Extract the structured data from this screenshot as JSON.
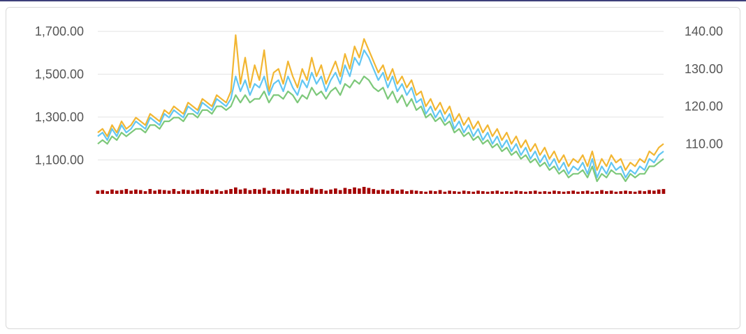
{
  "chart_data": {
    "type": "line",
    "title": "",
    "y_left": {
      "ticks": [
        "1,100.00",
        "1,300.00",
        "1,500.00",
        "1,700.00"
      ],
      "range": [
        1000,
        1700
      ]
    },
    "y_right": {
      "ticks": [
        "110.00",
        "120.00",
        "130.00",
        "140.00"
      ],
      "range": [
        100,
        140
      ]
    },
    "x_count": 120,
    "series": [
      {
        "name": "",
        "axis": "right",
        "color": "#f2b632",
        "values": [
          113,
          114,
          112,
          115,
          113,
          116,
          114,
          115,
          117,
          116,
          115,
          118,
          117,
          116,
          119,
          118,
          120,
          119,
          118,
          121,
          120,
          119,
          122,
          121,
          120,
          123,
          122,
          121,
          124,
          139,
          126,
          133,
          125,
          131,
          127,
          135,
          124,
          129,
          130,
          126,
          132,
          128,
          125,
          130,
          127,
          133,
          128,
          131,
          126,
          129,
          132,
          128,
          134,
          130,
          136,
          133,
          138,
          135,
          132,
          129,
          131,
          127,
          130,
          126,
          128,
          125,
          127,
          123,
          124,
          120,
          122,
          119,
          121,
          118,
          120,
          116,
          118,
          115,
          117,
          114,
          116,
          113,
          115,
          112,
          114,
          111,
          113,
          110,
          112,
          109,
          111,
          108,
          110,
          107,
          109,
          106,
          108,
          105,
          107,
          104,
          106,
          105,
          107,
          104,
          108,
          103,
          106,
          104,
          107,
          105,
          106,
          103,
          105,
          104,
          106,
          105,
          108,
          107,
          109,
          110
        ]
      },
      {
        "name": "",
        "axis": "right",
        "color": "#62c6f2",
        "values": [
          112,
          113,
          111,
          114,
          112,
          115,
          113,
          114,
          116,
          115,
          114,
          117,
          116,
          115,
          118,
          117,
          119,
          118,
          117,
          120,
          119,
          118,
          121,
          120,
          119,
          122,
          121,
          120,
          122,
          128,
          124,
          127,
          123,
          126,
          125,
          128,
          123,
          126,
          127,
          124,
          128,
          125,
          123,
          127,
          125,
          129,
          126,
          128,
          124,
          127,
          129,
          126,
          131,
          128,
          133,
          131,
          135,
          133,
          130,
          127,
          129,
          125,
          128,
          124,
          126,
          123,
          125,
          121,
          122,
          118,
          120,
          117,
          119,
          116,
          118,
          114,
          116,
          113,
          115,
          112,
          114,
          111,
          113,
          110,
          112,
          109,
          111,
          108,
          110,
          107,
          109,
          106,
          108,
          105,
          107,
          104,
          106,
          103,
          105,
          102,
          104,
          103,
          105,
          102,
          106,
          101,
          104,
          102,
          105,
          103,
          104,
          101,
          103,
          102,
          104,
          103,
          106,
          105,
          107,
          108
        ]
      },
      {
        "name": "",
        "axis": "right",
        "color": "#7dc87a",
        "values": [
          110,
          111,
          110,
          112,
          111,
          113,
          112,
          113,
          114,
          114,
          113,
          115,
          115,
          114,
          116,
          116,
          117,
          117,
          116,
          118,
          118,
          117,
          119,
          119,
          118,
          120,
          120,
          119,
          120,
          123,
          121,
          123,
          121,
          122,
          122,
          124,
          121,
          123,
          123,
          122,
          124,
          123,
          121,
          123,
          122,
          125,
          123,
          124,
          122,
          124,
          125,
          123,
          126,
          125,
          127,
          126,
          128,
          127,
          125,
          124,
          125,
          122,
          124,
          121,
          123,
          120,
          122,
          119,
          120,
          117,
          118,
          116,
          117,
          115,
          116,
          113,
          114,
          112,
          113,
          111,
          112,
          110,
          111,
          109,
          110,
          108,
          109,
          107,
          108,
          106,
          107,
          105,
          106,
          104,
          105,
          103,
          104,
          102,
          103,
          101,
          102,
          102,
          103,
          101,
          104,
          100,
          102,
          101,
          103,
          102,
          102,
          100,
          102,
          101,
          102,
          102,
          104,
          104,
          105,
          106
        ]
      }
    ],
    "bars_bottom": {
      "color": "#a30000",
      "values": [
        6,
        7,
        5,
        8,
        6,
        7,
        9,
        6,
        8,
        7,
        5,
        9,
        6,
        8,
        7,
        6,
        9,
        5,
        8,
        7,
        6,
        8,
        9,
        7,
        6,
        8,
        5,
        7,
        9,
        12,
        8,
        10,
        7,
        9,
        8,
        11,
        6,
        9,
        8,
        7,
        10,
        8,
        6,
        9,
        7,
        11,
        8,
        9,
        6,
        8,
        10,
        7,
        11,
        9,
        12,
        10,
        13,
        11,
        9,
        7,
        8,
        6,
        9,
        6,
        8,
        5,
        7,
        6,
        5,
        4,
        6,
        5,
        7,
        4,
        6,
        5,
        4,
        6,
        5,
        4,
        6,
        5,
        4,
        5,
        6,
        4,
        5,
        4,
        6,
        5,
        4,
        5,
        6,
        4,
        5,
        4,
        6,
        5,
        4,
        5,
        6,
        4,
        5,
        6,
        4,
        5,
        7,
        5,
        6,
        4,
        5,
        6,
        5,
        4,
        6,
        5,
        7,
        6,
        8,
        9
      ]
    }
  }
}
